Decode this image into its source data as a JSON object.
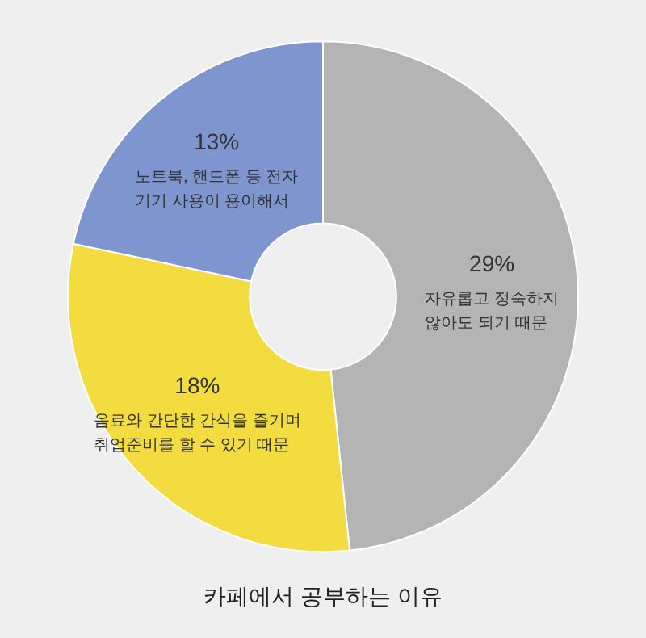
{
  "chart_data": {
    "type": "donut",
    "title": "카페에서 공부하는 이유",
    "categories": [
      "자유롭고 정숙하지\n않아도 되기 때문",
      "음료와 간단한 간식을 즐기며\n취업준비를 할 수 있기 때문",
      "노트북, 핸드폰 등 전자\n기기 사용이 용이해서"
    ],
    "values": [
      29,
      18,
      13
    ],
    "value_labels": [
      "29%",
      "18%",
      "13%"
    ],
    "colors": [
      "#b4b4b4",
      "#f2dc40",
      "#7f95d0"
    ],
    "legend": false
  }
}
